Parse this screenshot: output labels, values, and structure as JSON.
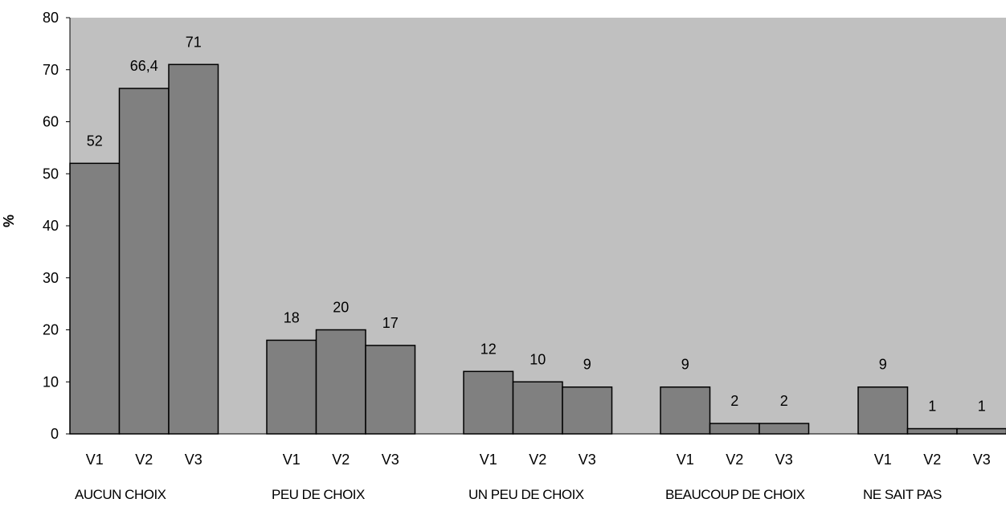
{
  "chart_data": {
    "type": "bar",
    "title": "",
    "xlabel": "",
    "ylabel": "%",
    "ylim": [
      0,
      80
    ],
    "yticks": [
      0,
      10,
      20,
      30,
      40,
      50,
      60,
      70,
      80
    ],
    "grid": false,
    "legend": "none",
    "groups": [
      {
        "name": "AUCUN CHOIX",
        "categories": [
          "V1",
          "V2",
          "V3"
        ],
        "values": [
          52,
          66.4,
          71
        ],
        "labels": [
          "52",
          "66,4",
          "71"
        ]
      },
      {
        "name": "PEU DE CHOIX",
        "categories": [
          "V1",
          "V2",
          "V3"
        ],
        "values": [
          18,
          20,
          17
        ],
        "labels": [
          "18",
          "20",
          "17"
        ]
      },
      {
        "name": "UN PEU DE CHOIX",
        "categories": [
          "V1",
          "V2",
          "V3"
        ],
        "values": [
          12,
          10,
          9
        ],
        "labels": [
          "12",
          "10",
          "9"
        ]
      },
      {
        "name": "BEAUCOUP DE CHOIX",
        "categories": [
          "V1",
          "V2",
          "V3"
        ],
        "values": [
          9,
          2,
          2
        ],
        "labels": [
          "9",
          "2",
          "2"
        ]
      },
      {
        "name": "NE SAIT PAS",
        "categories": [
          "V1",
          "V2",
          "V3"
        ],
        "values": [
          9,
          1,
          1
        ],
        "labels": [
          "9",
          "1",
          "1"
        ]
      }
    ],
    "colors": {
      "plot_background": "#c0c0c0",
      "bar_fill": "#808080",
      "bar_stroke": "#000000"
    }
  }
}
